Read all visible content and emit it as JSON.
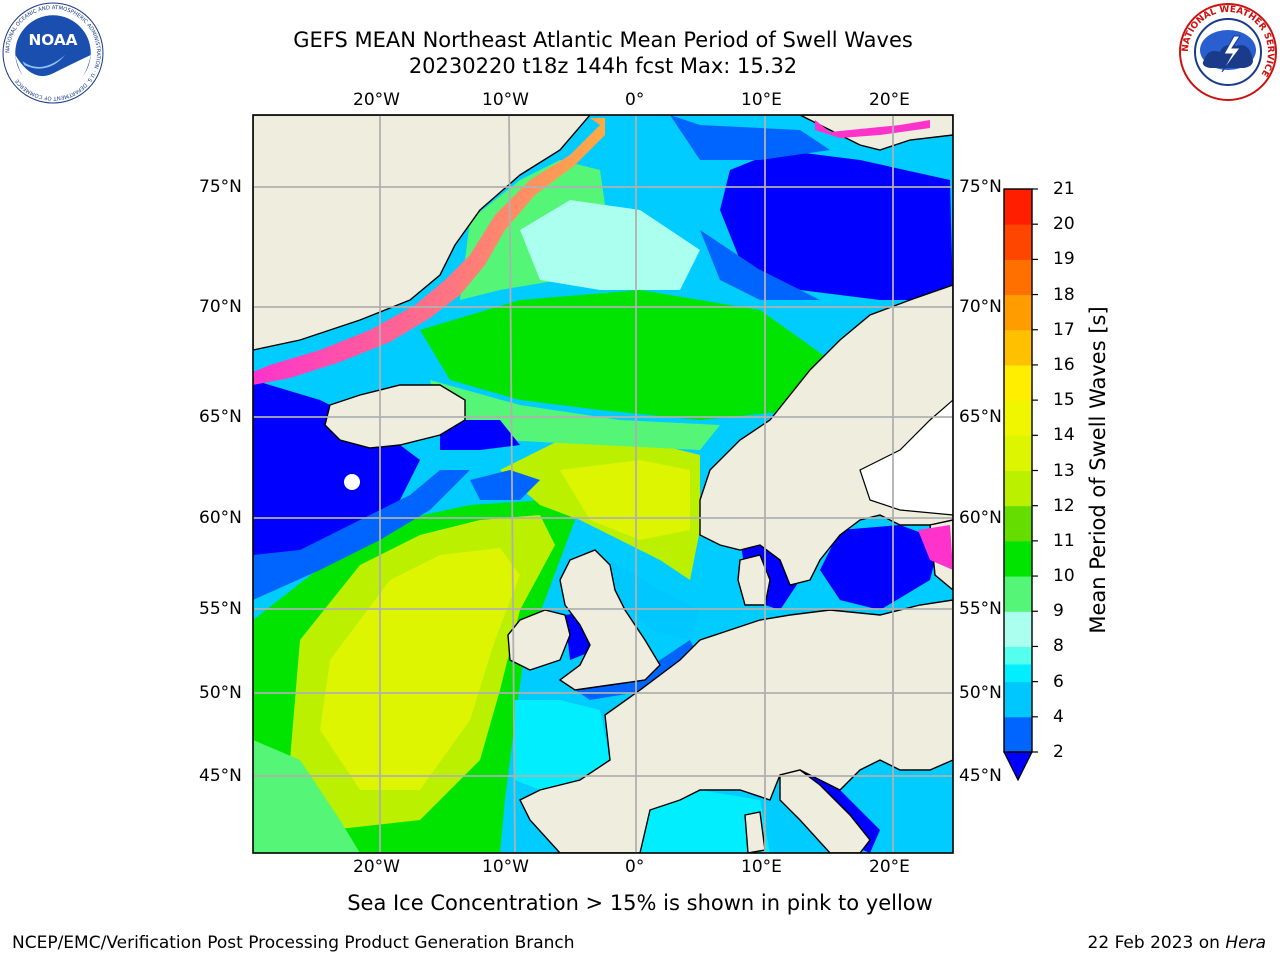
{
  "title": {
    "line1": "GEFS MEAN Northeast Atlantic Mean Period of Swell Waves",
    "line2": "20230220 t18z 144h fcst   Max: 15.32"
  },
  "logos": {
    "noaa": {
      "name": "noaa-logo",
      "text": "NOAA",
      "ring_text": "NATIONAL OCEANIC AND ATMOSPHERIC ADMINISTRATION · U.S. DEPARTMENT OF COMMERCE"
    },
    "nws": {
      "name": "nws-logo",
      "ring_text": "NATIONAL WEATHER SERVICE"
    }
  },
  "map": {
    "lon_labels": [
      "20°W",
      "10°W",
      "0°",
      "10°E",
      "20°E"
    ],
    "lat_labels": [
      "75°N",
      "70°N",
      "65°N",
      "60°N",
      "55°N",
      "50°N",
      "45°N"
    ],
    "colors": {
      "land": "#eeedde",
      "ice_free_unknown": "#ffffff",
      "grid": "#b0b0b0",
      "coast": "#000000"
    }
  },
  "colorbar": {
    "label": "Mean Period of Swell Waves [s]",
    "ticks": [
      "21",
      "20",
      "19",
      "18",
      "17",
      "16",
      "15",
      "14",
      "13",
      "12",
      "11",
      "10",
      "9",
      "8",
      "6",
      "4",
      "2"
    ],
    "bins": [
      {
        "from": 2,
        "to": 4,
        "color": "#0064ff"
      },
      {
        "from": 4,
        "to": 6,
        "color": "#00c8ff"
      },
      {
        "from": 6,
        "to": 7,
        "color": "#00eeff"
      },
      {
        "from": 7,
        "to": 8,
        "color": "#55ffee"
      },
      {
        "from": 8,
        "to": 9,
        "color": "#aaffee"
      },
      {
        "from": 9,
        "to": 10,
        "color": "#55f577"
      },
      {
        "from": 10,
        "to": 11,
        "color": "#00e400"
      },
      {
        "from": 11,
        "to": 12,
        "color": "#66dd00"
      },
      {
        "from": 12,
        "to": 13,
        "color": "#bbf000"
      },
      {
        "from": 13,
        "to": 14,
        "color": "#ddf500"
      },
      {
        "from": 14,
        "to": 15,
        "color": "#f0f500"
      },
      {
        "from": 15,
        "to": 16,
        "color": "#ffee00"
      },
      {
        "from": 16,
        "to": 17,
        "color": "#ffc000"
      },
      {
        "from": 17,
        "to": 18,
        "color": "#ff9c00"
      },
      {
        "from": 18,
        "to": 19,
        "color": "#ff7000"
      },
      {
        "from": 19,
        "to": 20,
        "color": "#ff4600"
      },
      {
        "from": 20,
        "to": 21,
        "color": "#ff1e00"
      }
    ],
    "under_color": "#0000ff"
  },
  "footer": {
    "note": "Sea Ice Concentration > 15% is shown in pink to yellow",
    "left": "NCEP/EMC/Verification Post Processing Product Generation Branch",
    "right_prefix": "22 Feb 2023 on ",
    "right_host": "Hera"
  }
}
